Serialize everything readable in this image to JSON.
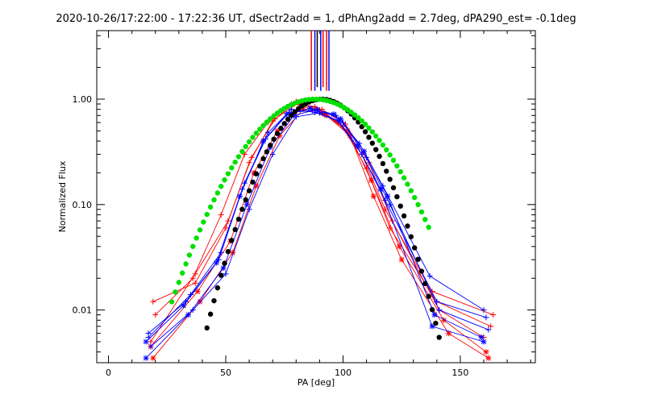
{
  "chart_data": {
    "type": "line",
    "title": "2020-10-26/17:22:00 - 17:22:36 UT, dSectr2add = 1, dPhAng2add = 2.7deg, dPA290_est= -0.1deg",
    "xlabel": "PA [deg]",
    "ylabel": "Normalized Flux",
    "xlim": [
      -5,
      182
    ],
    "ylim_log10": [
      -2.5,
      0.65
    ],
    "yscale": "log",
    "grid": false,
    "x_ticks": [
      0,
      50,
      100,
      150
    ],
    "x_tick_labels": [
      "0",
      "50",
      "100",
      "150"
    ],
    "y_ticks": [
      0.01,
      0.1,
      1.0
    ],
    "y_tick_labels": [
      "0.01",
      "0.10",
      "1.00"
    ],
    "colors": {
      "red": "#ff0000",
      "blue": "#0000ff",
      "green": "#00e000",
      "black": "#000000"
    },
    "vertical_lines": [
      {
        "x": 86.5,
        "y_from": 1.2,
        "color": "#ff0000"
      },
      {
        "x": 88.0,
        "y_from": 1.2,
        "color": "#0000ff"
      },
      {
        "x": 89.0,
        "y_from": 1.3,
        "color": "#000000"
      },
      {
        "x": 90.5,
        "y_from": 1.2,
        "color": "#0000ff"
      },
      {
        "x": 91.5,
        "y_from": 1.3,
        "color": "#ff0000"
      },
      {
        "x": 93.0,
        "y_from": 1.2,
        "color": "#ff0000"
      },
      {
        "x": 94.0,
        "y_from": 1.2,
        "color": "#0000ff"
      }
    ],
    "gaussian_fits": [
      {
        "name": "black fit",
        "color": "#000000",
        "center": 91,
        "sigma": 15.5,
        "x_range": [
          42,
          141
        ],
        "step": 1.5
      },
      {
        "name": "green fit",
        "color": "#00e000",
        "center": 88,
        "sigma": 20.5,
        "x_range": [
          27,
          137
        ],
        "step": 1.5
      }
    ],
    "series": [
      {
        "name": "red 1",
        "color": "#ff0000",
        "marker": "plus",
        "x": [
          19,
          37,
          50,
          60,
          70,
          80,
          90,
          100,
          110,
          120,
          140,
          163
        ],
        "y": [
          0.012,
          0.018,
          0.06,
          0.25,
          0.62,
          0.95,
          0.78,
          0.55,
          0.22,
          0.06,
          0.012,
          0.007
        ]
      },
      {
        "name": "red 2",
        "color": "#ff0000",
        "marker": "star",
        "x": [
          18,
          38,
          52,
          62,
          72,
          82,
          92,
          102,
          112,
          124,
          143,
          161
        ],
        "y": [
          0.0045,
          0.015,
          0.045,
          0.2,
          0.5,
          0.88,
          0.72,
          0.5,
          0.17,
          0.04,
          0.008,
          0.004
        ]
      },
      {
        "name": "red 3",
        "color": "#ff0000",
        "marker": "plus",
        "x": [
          20,
          36,
          48,
          58,
          68,
          78,
          88,
          98,
          108,
          118,
          138,
          164
        ],
        "y": [
          0.009,
          0.02,
          0.08,
          0.3,
          0.6,
          0.9,
          0.85,
          0.6,
          0.3,
          0.09,
          0.015,
          0.009
        ]
      },
      {
        "name": "red 4",
        "color": "#ff0000",
        "marker": "star",
        "x": [
          19,
          39,
          53,
          63,
          73,
          83,
          93,
          103,
          113,
          125,
          145,
          162
        ],
        "y": [
          0.0035,
          0.012,
          0.035,
          0.15,
          0.45,
          0.8,
          0.7,
          0.45,
          0.12,
          0.03,
          0.006,
          0.0035
        ]
      },
      {
        "name": "red 5",
        "color": "#ff0000",
        "marker": "plus",
        "x": [
          18,
          37,
          51,
          61,
          71,
          81,
          91,
          101,
          111,
          121,
          141,
          160
        ],
        "y": [
          0.005,
          0.022,
          0.07,
          0.28,
          0.65,
          0.92,
          0.8,
          0.58,
          0.25,
          0.07,
          0.01,
          0.0055
        ]
      },
      {
        "name": "blue 1",
        "color": "#0000ff",
        "marker": "plus",
        "x": [
          17,
          33,
          47,
          57,
          67,
          77,
          87,
          97,
          107,
          117,
          137,
          160
        ],
        "y": [
          0.006,
          0.012,
          0.03,
          0.14,
          0.42,
          0.75,
          0.78,
          0.7,
          0.38,
          0.15,
          0.021,
          0.01
        ]
      },
      {
        "name": "blue 2",
        "color": "#0000ff",
        "marker": "star",
        "x": [
          16,
          34,
          49,
          59,
          69,
          79,
          89,
          99,
          109,
          119,
          139,
          159
        ],
        "y": [
          0.0035,
          0.009,
          0.025,
          0.1,
          0.35,
          0.7,
          0.8,
          0.65,
          0.32,
          0.12,
          0.009,
          0.0055
        ]
      },
      {
        "name": "blue 3",
        "color": "#0000ff",
        "marker": "plus",
        "x": [
          17,
          35,
          48,
          58,
          68,
          78,
          88,
          98,
          108,
          118,
          140,
          161
        ],
        "y": [
          0.0055,
          0.014,
          0.035,
          0.16,
          0.48,
          0.8,
          0.75,
          0.62,
          0.3,
          0.11,
          0.012,
          0.0085
        ]
      },
      {
        "name": "blue 4",
        "color": "#0000ff",
        "marker": "star",
        "x": [
          16,
          32,
          46,
          56,
          66,
          76,
          86,
          96,
          106,
          116,
          138,
          160
        ],
        "y": [
          0.005,
          0.011,
          0.028,
          0.12,
          0.4,
          0.72,
          0.82,
          0.72,
          0.36,
          0.14,
          0.007,
          0.005
        ]
      },
      {
        "name": "blue 5",
        "color": "#0000ff",
        "marker": "plus",
        "x": [
          18,
          36,
          50,
          60,
          70,
          80,
          90,
          100,
          110,
          120,
          141,
          162
        ],
        "y": [
          0.0045,
          0.01,
          0.022,
          0.09,
          0.3,
          0.68,
          0.74,
          0.6,
          0.28,
          0.1,
          0.01,
          0.0065
        ]
      }
    ]
  }
}
